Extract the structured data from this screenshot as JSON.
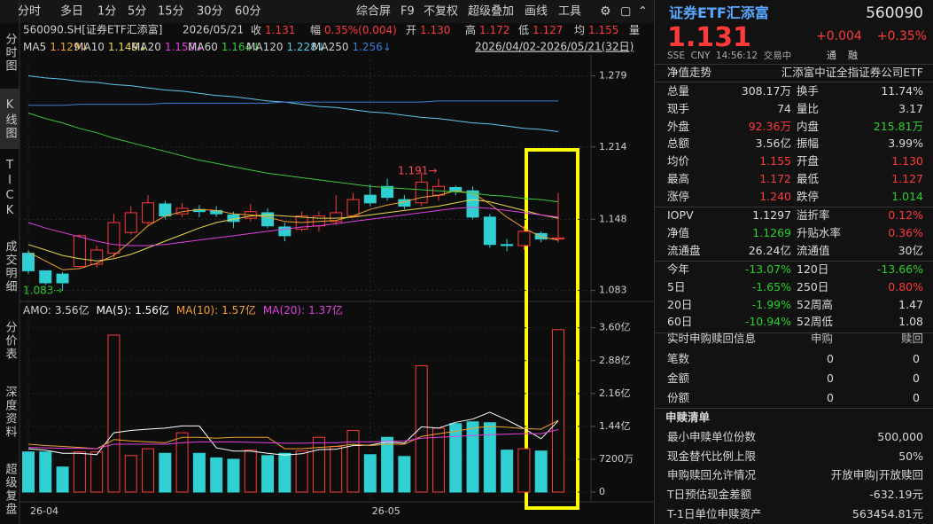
{
  "toolbar": {
    "left": [
      "分时",
      "多日",
      "1分",
      "5分",
      "15分",
      "30分",
      "60分"
    ],
    "right": [
      "综合屏",
      "F9",
      "不复权",
      "超级叠加",
      "画线",
      "工具"
    ]
  },
  "side_tabs": [
    "分时图",
    "K线图",
    "TICK",
    "成交明细",
    "分价表",
    "深度资料",
    "超级复盘"
  ],
  "quote_line": {
    "symbol": "560090.SH[证券ETF汇添富]",
    "date": "2026/05/21",
    "fields": [
      {
        "label": "收",
        "value": "1.131"
      },
      {
        "label": "幅",
        "value": "0.35%(0.004)"
      },
      {
        "label": "开",
        "value": "1.130"
      },
      {
        "label": "高",
        "value": "1.172"
      },
      {
        "label": "低",
        "value": "1.127"
      },
      {
        "label": "均",
        "value": "1.155"
      },
      {
        "label": "量"
      }
    ]
  },
  "range": "2026/04/02-2026/05/21(32日)",
  "kline": {
    "type": "candlestick",
    "categories": [
      "26-04",
      null,
      null,
      null,
      null,
      null,
      null,
      null,
      null,
      null,
      null,
      null,
      null,
      null,
      null,
      null,
      null,
      null,
      null,
      null,
      "26-05",
      null,
      null,
      null,
      null,
      null,
      null,
      null,
      null,
      null,
      null,
      null
    ],
    "open": [
      1.117,
      1.101,
      1.098,
      1.105,
      1.107,
      1.117,
      1.136,
      1.145,
      1.162,
      1.153,
      1.157,
      1.156,
      1.152,
      1.149,
      1.154,
      1.141,
      1.139,
      1.142,
      1.146,
      1.151,
      1.17,
      1.178,
      1.166,
      1.163,
      1.17,
      1.177,
      1.174,
      1.15,
      1.125,
      1.124,
      1.135,
      1.13
    ],
    "high": [
      1.12,
      1.101,
      1.1,
      1.134,
      1.124,
      1.153,
      1.16,
      1.17,
      1.165,
      1.163,
      1.161,
      1.16,
      1.155,
      1.162,
      1.158,
      1.145,
      1.155,
      1.155,
      1.17,
      1.172,
      1.18,
      1.185,
      1.17,
      1.191,
      1.185,
      1.179,
      1.178,
      1.153,
      1.13,
      1.142,
      1.137,
      1.172
    ],
    "low": [
      1.098,
      1.088,
      1.083,
      1.104,
      1.104,
      1.113,
      1.134,
      1.143,
      1.148,
      1.15,
      1.15,
      1.15,
      1.14,
      1.146,
      1.14,
      1.128,
      1.137,
      1.137,
      1.143,
      1.15,
      1.16,
      1.165,
      1.157,
      1.16,
      1.165,
      1.17,
      1.148,
      1.122,
      1.119,
      1.12,
      1.127,
      1.127
    ],
    "close": [
      1.101,
      1.09,
      1.09,
      1.133,
      1.12,
      1.145,
      1.154,
      1.163,
      1.151,
      1.158,
      1.155,
      1.153,
      1.146,
      1.155,
      1.142,
      1.133,
      1.151,
      1.151,
      1.154,
      1.166,
      1.163,
      1.168,
      1.16,
      1.182,
      1.178,
      1.174,
      1.15,
      1.125,
      1.124,
      1.137,
      1.13,
      1.131
    ],
    "ylim": [
      1.073,
      1.298
    ],
    "yticks": [
      1.279,
      1.214,
      1.148,
      1.083
    ],
    "up_color": "#ff3a3a",
    "down_color": "#2fcfd2",
    "ma": [
      {
        "name": "MA5",
        "label": "1.129↓",
        "color": "#f0a030",
        "values": [
          1.118,
          1.11,
          1.102,
          1.103,
          1.108,
          1.115,
          1.128,
          1.142,
          1.151,
          1.155,
          1.157,
          1.156,
          1.153,
          1.152,
          1.15,
          1.146,
          1.145,
          1.146,
          1.147,
          1.151,
          1.157,
          1.161,
          1.164,
          1.168,
          1.17,
          1.174,
          1.172,
          1.162,
          1.15,
          1.14,
          1.132,
          1.129
        ]
      },
      {
        "name": "MA10",
        "label": "1.149↓",
        "color": "#e8d84a",
        "values": [
          1.125,
          1.12,
          1.115,
          1.112,
          1.11,
          1.112,
          1.116,
          1.122,
          1.128,
          1.134,
          1.14,
          1.145,
          1.148,
          1.151,
          1.152,
          1.151,
          1.15,
          1.149,
          1.149,
          1.15,
          1.152,
          1.154,
          1.156,
          1.158,
          1.16,
          1.163,
          1.166,
          1.164,
          1.16,
          1.156,
          1.152,
          1.149
        ]
      },
      {
        "name": "MA20",
        "label": "1.150↓",
        "color": "#e040e0",
        "values": [
          1.145,
          1.14,
          1.136,
          1.132,
          1.128,
          1.125,
          1.124,
          1.124,
          1.125,
          1.127,
          1.129,
          1.131,
          1.133,
          1.135,
          1.137,
          1.139,
          1.141,
          1.142,
          1.144,
          1.146,
          1.148,
          1.15,
          1.152,
          1.154,
          1.156,
          1.158,
          1.159,
          1.158,
          1.156,
          1.154,
          1.152,
          1.15
        ]
      },
      {
        "name": "MA60",
        "label": "1.164↓",
        "color": "#3cc83c",
        "values": [
          1.245,
          1.24,
          1.236,
          1.231,
          1.227,
          1.222,
          1.218,
          1.214,
          1.21,
          1.206,
          1.202,
          1.199,
          1.196,
          1.193,
          1.19,
          1.188,
          1.186,
          1.184,
          1.182,
          1.18,
          1.178,
          1.177,
          1.176,
          1.175,
          1.174,
          1.173,
          1.172,
          1.17,
          1.169,
          1.167,
          1.166,
          1.164
        ]
      },
      {
        "name": "MA120",
        "label": "1.228↓",
        "color": "#5cc8e8",
        "values": [
          1.279,
          1.277,
          1.276,
          1.274,
          1.273,
          1.271,
          1.27,
          1.268,
          1.266,
          1.265,
          1.263,
          1.261,
          1.26,
          1.258,
          1.256,
          1.255,
          1.253,
          1.251,
          1.25,
          1.248,
          1.246,
          1.245,
          1.243,
          1.241,
          1.24,
          1.238,
          1.236,
          1.235,
          1.233,
          1.231,
          1.23,
          1.228
        ]
      },
      {
        "name": "MA250",
        "label": "1.256↓",
        "color": "#3a7bd5",
        "values": [
          1.252,
          1.252,
          1.252,
          1.253,
          1.253,
          1.253,
          1.253,
          1.253,
          1.254,
          1.254,
          1.254,
          1.254,
          1.254,
          1.254,
          1.254,
          1.255,
          1.255,
          1.255,
          1.255,
          1.255,
          1.255,
          1.255,
          1.255,
          1.255,
          1.256,
          1.256,
          1.256,
          1.256,
          1.256,
          1.256,
          1.256,
          1.256
        ]
      }
    ],
    "annotations": [
      "1.191→",
      "1.083→"
    ]
  },
  "volume": {
    "type": "bar",
    "values": [
      0.88,
      0.88,
      0.55,
      0.88,
      0.88,
      3.44,
      0.8,
      0.95,
      0.85,
      1.3,
      0.85,
      0.75,
      0.72,
      0.92,
      0.8,
      0.85,
      0.9,
      1.2,
      1.0,
      1.35,
      0.82,
      1.2,
      0.78,
      2.77,
      1.4,
      1.5,
      1.54,
      1.52,
      0.92,
      0.95,
      0.9,
      3.56
    ],
    "ylim": [
      0,
      3.75
    ],
    "yticks": [
      {
        "value": 3.6,
        "label": "3.60亿"
      },
      {
        "value": 2.88,
        "label": "2.88亿"
      },
      {
        "value": 2.16,
        "label": "2.16亿"
      },
      {
        "value": 1.44,
        "label": "1.44亿"
      },
      {
        "value": 0.72,
        "label": "7200万"
      },
      0
    ],
    "amo": {
      "name": "AMO:",
      "label": "3.56亿"
    },
    "ma": [
      {
        "name": "MA(5):",
        "label": "1.56亿",
        "color": "#ffffff",
        "values": [
          0.95,
          0.92,
          0.85,
          0.85,
          0.82,
          1.3,
          1.35,
          1.38,
          1.4,
          1.45,
          1.45,
          0.97,
          0.9,
          0.9,
          0.85,
          0.81,
          0.84,
          0.93,
          0.94,
          1.02,
          1.03,
          1.1,
          1.07,
          1.43,
          1.4,
          1.53,
          1.6,
          1.75,
          1.58,
          1.39,
          1.17,
          1.56
        ]
      },
      {
        "name": "MA(10):",
        "label": "1.57亿",
        "color": "#f0a030",
        "values": [
          1.05,
          1.02,
          1.0,
          0.98,
          0.95,
          1.15,
          1.12,
          1.1,
          1.08,
          1.2,
          1.2,
          1.18,
          1.2,
          1.2,
          1.2,
          0.95,
          0.95,
          0.98,
          1.0,
          1.05,
          1.02,
          1.05,
          1.05,
          1.22,
          1.28,
          1.33,
          1.4,
          1.44,
          1.42,
          1.39,
          1.38,
          1.57
        ]
      },
      {
        "name": "MA(20):",
        "label": "1.37亿",
        "color": "#e040e0",
        "values": [
          0.98,
          0.97,
          0.96,
          0.96,
          0.95,
          1.05,
          1.05,
          1.05,
          1.05,
          1.08,
          1.1,
          1.1,
          1.1,
          1.09,
          1.08,
          1.07,
          1.07,
          1.08,
          1.08,
          1.1,
          1.1,
          1.11,
          1.12,
          1.18,
          1.2,
          1.22,
          1.24,
          1.26,
          1.27,
          1.28,
          1.28,
          1.37
        ]
      }
    ]
  },
  "panel": {
    "name": "证券ETF汇添富",
    "code": "560090",
    "price": "1.131",
    "change": "+0.004",
    "pct": "+0.35%",
    "status": "SSE  CNY  14:56:12  交易中",
    "badges": [
      "通",
      "融"
    ],
    "nav_link": "净值走势",
    "full_name": "汇添富中证全指证券公司ETF",
    "sections": [
      [
        {
          "cells": [
            "总量",
            "308.17万",
            "换手",
            "11.74%"
          ]
        },
        {
          "cells": [
            "现手",
            "74",
            "量比",
            "3.17"
          ]
        },
        {
          "cells": [
            "外盘",
            "92.36万",
            "内盘",
            "215.81万"
          ],
          "red": [
            1
          ],
          "green": [
            3
          ]
        },
        {
          "cells": [
            "总额",
            "3.56亿",
            "振幅",
            "3.99%"
          ]
        },
        {
          "cells": [
            "均价",
            "1.155",
            "开盘",
            "1.130"
          ],
          "red": [
            1,
            3
          ]
        },
        {
          "cells": [
            "最高",
            "1.172",
            "最低",
            "1.127"
          ],
          "red": [
            1,
            3
          ]
        },
        {
          "cells": [
            "涨停",
            "1.240",
            "跌停",
            "1.014"
          ],
          "red": [
            1
          ],
          "green": [
            3
          ]
        }
      ],
      [
        {
          "cells": [
            "IOPV",
            "1.1297",
            "溢折率",
            "0.12%"
          ],
          "red": [
            3
          ]
        },
        {
          "cells": [
            "净值",
            "1.1269",
            "升贴水率",
            "0.36%"
          ],
          "green": [
            1
          ],
          "red": [
            3
          ]
        },
        {
          "cells": [
            "流通盘",
            "26.24亿",
            "流通值",
            "30亿"
          ]
        }
      ],
      [
        {
          "cells": [
            "今年",
            "-13.07%",
            "120日",
            "-13.66%"
          ],
          "green": [
            1,
            3
          ]
        },
        {
          "cells": [
            "5日",
            "-1.65%",
            "250日",
            "0.80%"
          ],
          "green": [
            1
          ],
          "red": [
            3
          ]
        },
        {
          "cells": [
            "20日",
            "-1.99%",
            "52周高",
            "1.47"
          ],
          "green": [
            1
          ]
        },
        {
          "cells": [
            "60日",
            "-10.94%",
            "52周低",
            "1.08"
          ],
          "green": [
            1
          ]
        }
      ]
    ],
    "subscription": {
      "title": "实时申购赎回信息",
      "headers": [
        "申购",
        "赎回"
      ],
      "rows": [
        [
          "笔数",
          "0",
          "0"
        ],
        [
          "金额",
          "0",
          "0"
        ],
        [
          "份额",
          "0",
          "0"
        ]
      ]
    },
    "list": {
      "title": "申赎清单",
      "rows": [
        [
          "最小申赎单位份数",
          "500,000"
        ],
        [
          "现金替代比例上限",
          "50%"
        ],
        [
          "申购赎回允许情况",
          "开放申购|开放赎回"
        ],
        [
          "T日预估现金差额",
          "-632.19元"
        ],
        [
          "T-1日单位申赎资产",
          "563454.81元"
        ]
      ]
    }
  }
}
